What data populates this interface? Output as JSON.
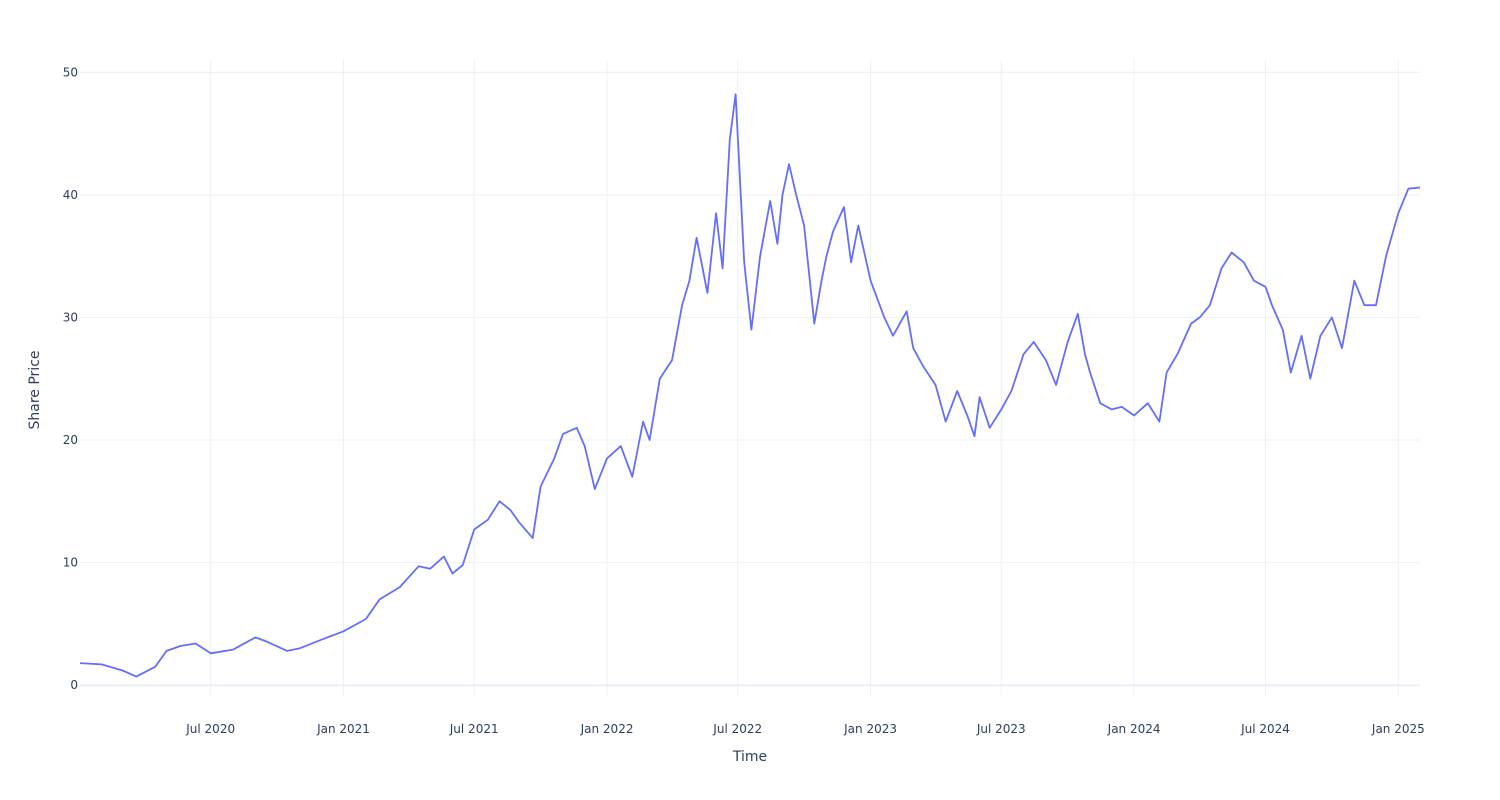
{
  "chart_data": {
    "type": "line",
    "xlabel": "Time",
    "ylabel": "Share Price",
    "x_range": [
      "2020-01-02",
      "2025-01-31"
    ],
    "ylim": [
      -0.8,
      51
    ],
    "y_ticks": [
      0,
      10,
      20,
      30,
      40,
      50
    ],
    "x_ticks": [
      {
        "date": "2020-07-01",
        "label": "Jul 2020"
      },
      {
        "date": "2021-01-01",
        "label": "Jan 2021"
      },
      {
        "date": "2021-07-01",
        "label": "Jul 2021"
      },
      {
        "date": "2022-01-01",
        "label": "Jan 2022"
      },
      {
        "date": "2022-07-01",
        "label": "Jul 2022"
      },
      {
        "date": "2023-01-01",
        "label": "Jan 2023"
      },
      {
        "date": "2023-07-01",
        "label": "Jul 2023"
      },
      {
        "date": "2024-01-01",
        "label": "Jan 2024"
      },
      {
        "date": "2024-07-01",
        "label": "Jul 2024"
      },
      {
        "date": "2025-01-01",
        "label": "Jan 2025"
      }
    ],
    "grid": true,
    "series": [
      {
        "color": "#636efa",
        "x": [
          "2020-01-02",
          "2020-02-01",
          "2020-03-01",
          "2020-03-20",
          "2020-04-15",
          "2020-05-01",
          "2020-05-20",
          "2020-06-10",
          "2020-07-01",
          "2020-08-01",
          "2020-09-01",
          "2020-09-15",
          "2020-10-15",
          "2020-11-01",
          "2020-12-01",
          "2021-01-01",
          "2021-02-01",
          "2021-02-20",
          "2021-03-20",
          "2021-04-15",
          "2021-05-01",
          "2021-05-20",
          "2021-06-01",
          "2021-06-15",
          "2021-07-01",
          "2021-07-20",
          "2021-08-05",
          "2021-08-20",
          "2021-09-01",
          "2021-09-20",
          "2021-10-01",
          "2021-10-20",
          "2021-11-01",
          "2021-11-20",
          "2021-12-01",
          "2021-12-15",
          "2022-01-01",
          "2022-01-20",
          "2022-02-05",
          "2022-02-20",
          "2022-03-01",
          "2022-03-15",
          "2022-04-01",
          "2022-04-15",
          "2022-04-25",
          "2022-05-05",
          "2022-05-20",
          "2022-06-01",
          "2022-06-10",
          "2022-06-20",
          "2022-06-28",
          "2022-07-10",
          "2022-07-20",
          "2022-08-01",
          "2022-08-15",
          "2022-08-25",
          "2022-09-01",
          "2022-09-10",
          "2022-09-20",
          "2022-10-01",
          "2022-10-15",
          "2022-10-25",
          "2022-11-01",
          "2022-11-10",
          "2022-11-25",
          "2022-12-05",
          "2022-12-15",
          "2023-01-01",
          "2023-01-20",
          "2023-02-01",
          "2023-02-20",
          "2023-03-01",
          "2023-03-15",
          "2023-04-01",
          "2023-04-15",
          "2023-05-01",
          "2023-05-15",
          "2023-05-25",
          "2023-06-01",
          "2023-06-15",
          "2023-07-01",
          "2023-07-15",
          "2023-08-01",
          "2023-08-15",
          "2023-09-01",
          "2023-09-15",
          "2023-10-01",
          "2023-10-15",
          "2023-10-25",
          "2023-11-01",
          "2023-11-15",
          "2023-12-01",
          "2023-12-15",
          "2024-01-01",
          "2024-01-20",
          "2024-02-05",
          "2024-02-15",
          "2024-03-01",
          "2024-03-20",
          "2024-04-01",
          "2024-04-15",
          "2024-05-01",
          "2024-05-15",
          "2024-06-01",
          "2024-06-15",
          "2024-07-01",
          "2024-07-10",
          "2024-07-25",
          "2024-08-05",
          "2024-08-20",
          "2024-09-01",
          "2024-09-15",
          "2024-10-01",
          "2024-10-15",
          "2024-11-01",
          "2024-11-15",
          "2024-12-01",
          "2024-12-15",
          "2025-01-01",
          "2025-01-15",
          "2025-01-31"
        ],
        "y": [
          1.8,
          1.7,
          1.2,
          0.7,
          1.5,
          2.8,
          3.2,
          3.4,
          2.6,
          2.9,
          3.9,
          3.6,
          2.8,
          3.0,
          3.7,
          4.4,
          5.4,
          7.0,
          8.0,
          9.7,
          9.5,
          10.5,
          9.1,
          9.8,
          12.7,
          13.5,
          15.0,
          14.3,
          13.3,
          12.0,
          16.2,
          18.5,
          20.5,
          21.0,
          19.5,
          16.0,
          18.5,
          19.5,
          17.0,
          21.5,
          20.0,
          25.0,
          26.5,
          31.0,
          33.0,
          36.5,
          32.0,
          38.5,
          34.0,
          44.5,
          48.2,
          34.5,
          29.0,
          35.0,
          39.5,
          36.0,
          40.0,
          42.5,
          40.0,
          37.5,
          29.5,
          33.0,
          35.0,
          37.0,
          39.0,
          34.5,
          37.5,
          33.0,
          30.0,
          28.5,
          30.5,
          27.5,
          26.0,
          24.5,
          21.5,
          24.0,
          22.0,
          20.3,
          23.5,
          21.0,
          22.5,
          24.0,
          27.0,
          28.0,
          26.5,
          24.5,
          28.0,
          30.3,
          27.0,
          25.5,
          23.0,
          22.5,
          22.7,
          22.0,
          23.0,
          21.5,
          25.5,
          27.0,
          29.5,
          30.0,
          31.0,
          34.0,
          35.3,
          34.5,
          33.0,
          32.5,
          31.0,
          29.0,
          25.5,
          28.5,
          25.0,
          28.5,
          30.0,
          27.5,
          33.0,
          31.0,
          31.0,
          35.0,
          38.5,
          40.5,
          40.6
        ]
      }
    ]
  }
}
